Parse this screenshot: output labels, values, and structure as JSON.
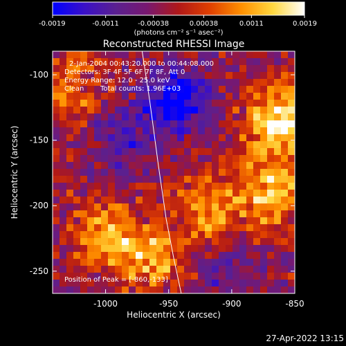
{
  "colors": {
    "background": "#000000",
    "foreground": "#ffffff",
    "colormap": [
      "#0000ff",
      "#3a10c8",
      "#5a2090",
      "#781870",
      "#b01818",
      "#e04000",
      "#ff9000",
      "#ffd840",
      "#ffffff"
    ]
  },
  "colorbar": {
    "min": -0.0019,
    "max": 0.0019,
    "tick_labels": [
      "-0.0019",
      "-0.0011",
      "-0.00038",
      "0.00038",
      "0.0011",
      "0.0019"
    ],
    "unit_label": "(photons cm⁻² s⁻¹ asec⁻²)"
  },
  "chart_data": {
    "type": "heatmap",
    "title": "Reconstructed RHESSI Image",
    "xlabel": "Heliocentric X (arcsec)",
    "ylabel": "Heliocentric Y (arcsec)",
    "xlim": [
      -1042,
      -850
    ],
    "ylim": [
      -267,
      -82
    ],
    "x_ticks": [
      -1000,
      -950,
      -900,
      -850
    ],
    "x_tick_labels": [
      "-1000",
      "-950",
      "-900",
      "-850"
    ],
    "y_ticks": [
      -250,
      -200,
      -150,
      -100
    ],
    "y_tick_labels": [
      "-250",
      "-200",
      "-150",
      "-100"
    ],
    "limb_curve": [
      [
        -971,
        -82
      ],
      [
        -965,
        -120
      ],
      [
        -958,
        -170
      ],
      [
        -952,
        -210
      ],
      [
        -946,
        -240
      ],
      [
        -940,
        -267
      ]
    ],
    "bright_regions": [
      {
        "x": -862,
        "y": -135,
        "value": 0.0019
      },
      {
        "x": -870,
        "y": -190,
        "value": 0.0015
      },
      {
        "x": -1000,
        "y": -225,
        "value": 0.0014
      },
      {
        "x": -960,
        "y": -240,
        "value": 0.0012
      },
      {
        "x": -920,
        "y": -205,
        "value": 0.0011
      },
      {
        "x": -1030,
        "y": -110,
        "value": 0.0009
      }
    ],
    "dark_regions": [
      {
        "x": -945,
        "y": -120,
        "value": -0.0019
      },
      {
        "x": -990,
        "y": -150,
        "value": -0.0008
      },
      {
        "x": -900,
        "y": -250,
        "value": -0.0007
      }
    ],
    "annotations": {
      "time_range": "2-Jan-2004 00:43:20.000 to 00:44:08.000",
      "detectors": "Detectors: 3F 4F 5F 6F 7F 8F, Att 0",
      "energy": "Energy Range: 12.0 - 25.0 keV",
      "method": "Clean",
      "counts": "Total counts: 1.96E+03",
      "peak": "Position of Peak = [-860,-133]"
    }
  },
  "timestamp": "27-Apr-2022 13:15"
}
